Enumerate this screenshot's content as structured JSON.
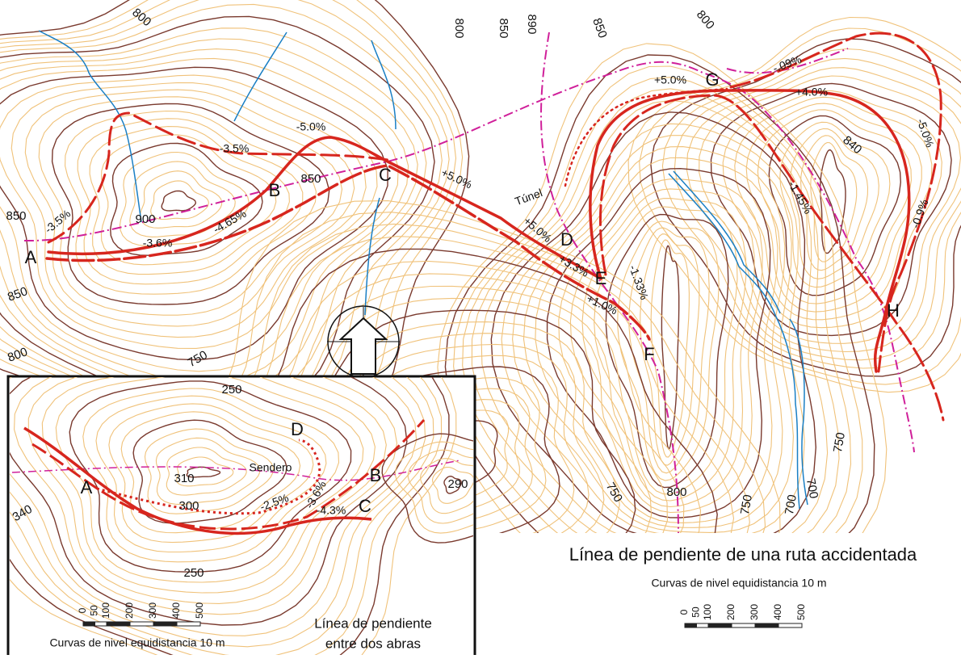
{
  "main_map": {
    "points": [
      "A",
      "B",
      "C",
      "D",
      "E",
      "F",
      "G",
      "H"
    ],
    "contour_labels": [
      "800",
      "800",
      "850",
      "890",
      "850",
      "800",
      "850",
      "900",
      "850",
      "850",
      "800",
      "750",
      "840",
      "750",
      "750",
      "800",
      "750",
      "700",
      "700"
    ],
    "slope_labels": [
      "-3.5%",
      "-3.6%",
      "-4.65%",
      "-3.5%",
      "-5.0%",
      "+5.0%",
      "+5.0%",
      "+3.3%",
      "+1.0%",
      "-1.33%",
      "+5.0%",
      "-.09%",
      "+4.0%",
      "-5.0%",
      "-1.45%",
      "-0.9%"
    ],
    "tunnel_label": "Túnel",
    "title": "Línea de pendiente de una ruta accidentada",
    "subtitle": "Curvas de nivel equidistancia 10 m",
    "scale_labels": [
      "0",
      "50",
      "100",
      "200",
      "300",
      "400",
      "500"
    ]
  },
  "inset": {
    "points": [
      "A",
      "B",
      "C",
      "D"
    ],
    "contour_labels": [
      "250",
      "310",
      "290",
      "300",
      "340",
      "250"
    ],
    "slope_labels": [
      "-2.5%",
      "-3.6%",
      "-4.3%"
    ],
    "trail_label": "Sendero",
    "scale_labels": [
      "0",
      "50",
      "100",
      "200",
      "300",
      "400",
      "500"
    ],
    "subtitle": "Curvas de nivel equidistancia 10 m",
    "caption_lines": [
      "Línea de pendiente",
      "entre dos abras"
    ]
  }
}
